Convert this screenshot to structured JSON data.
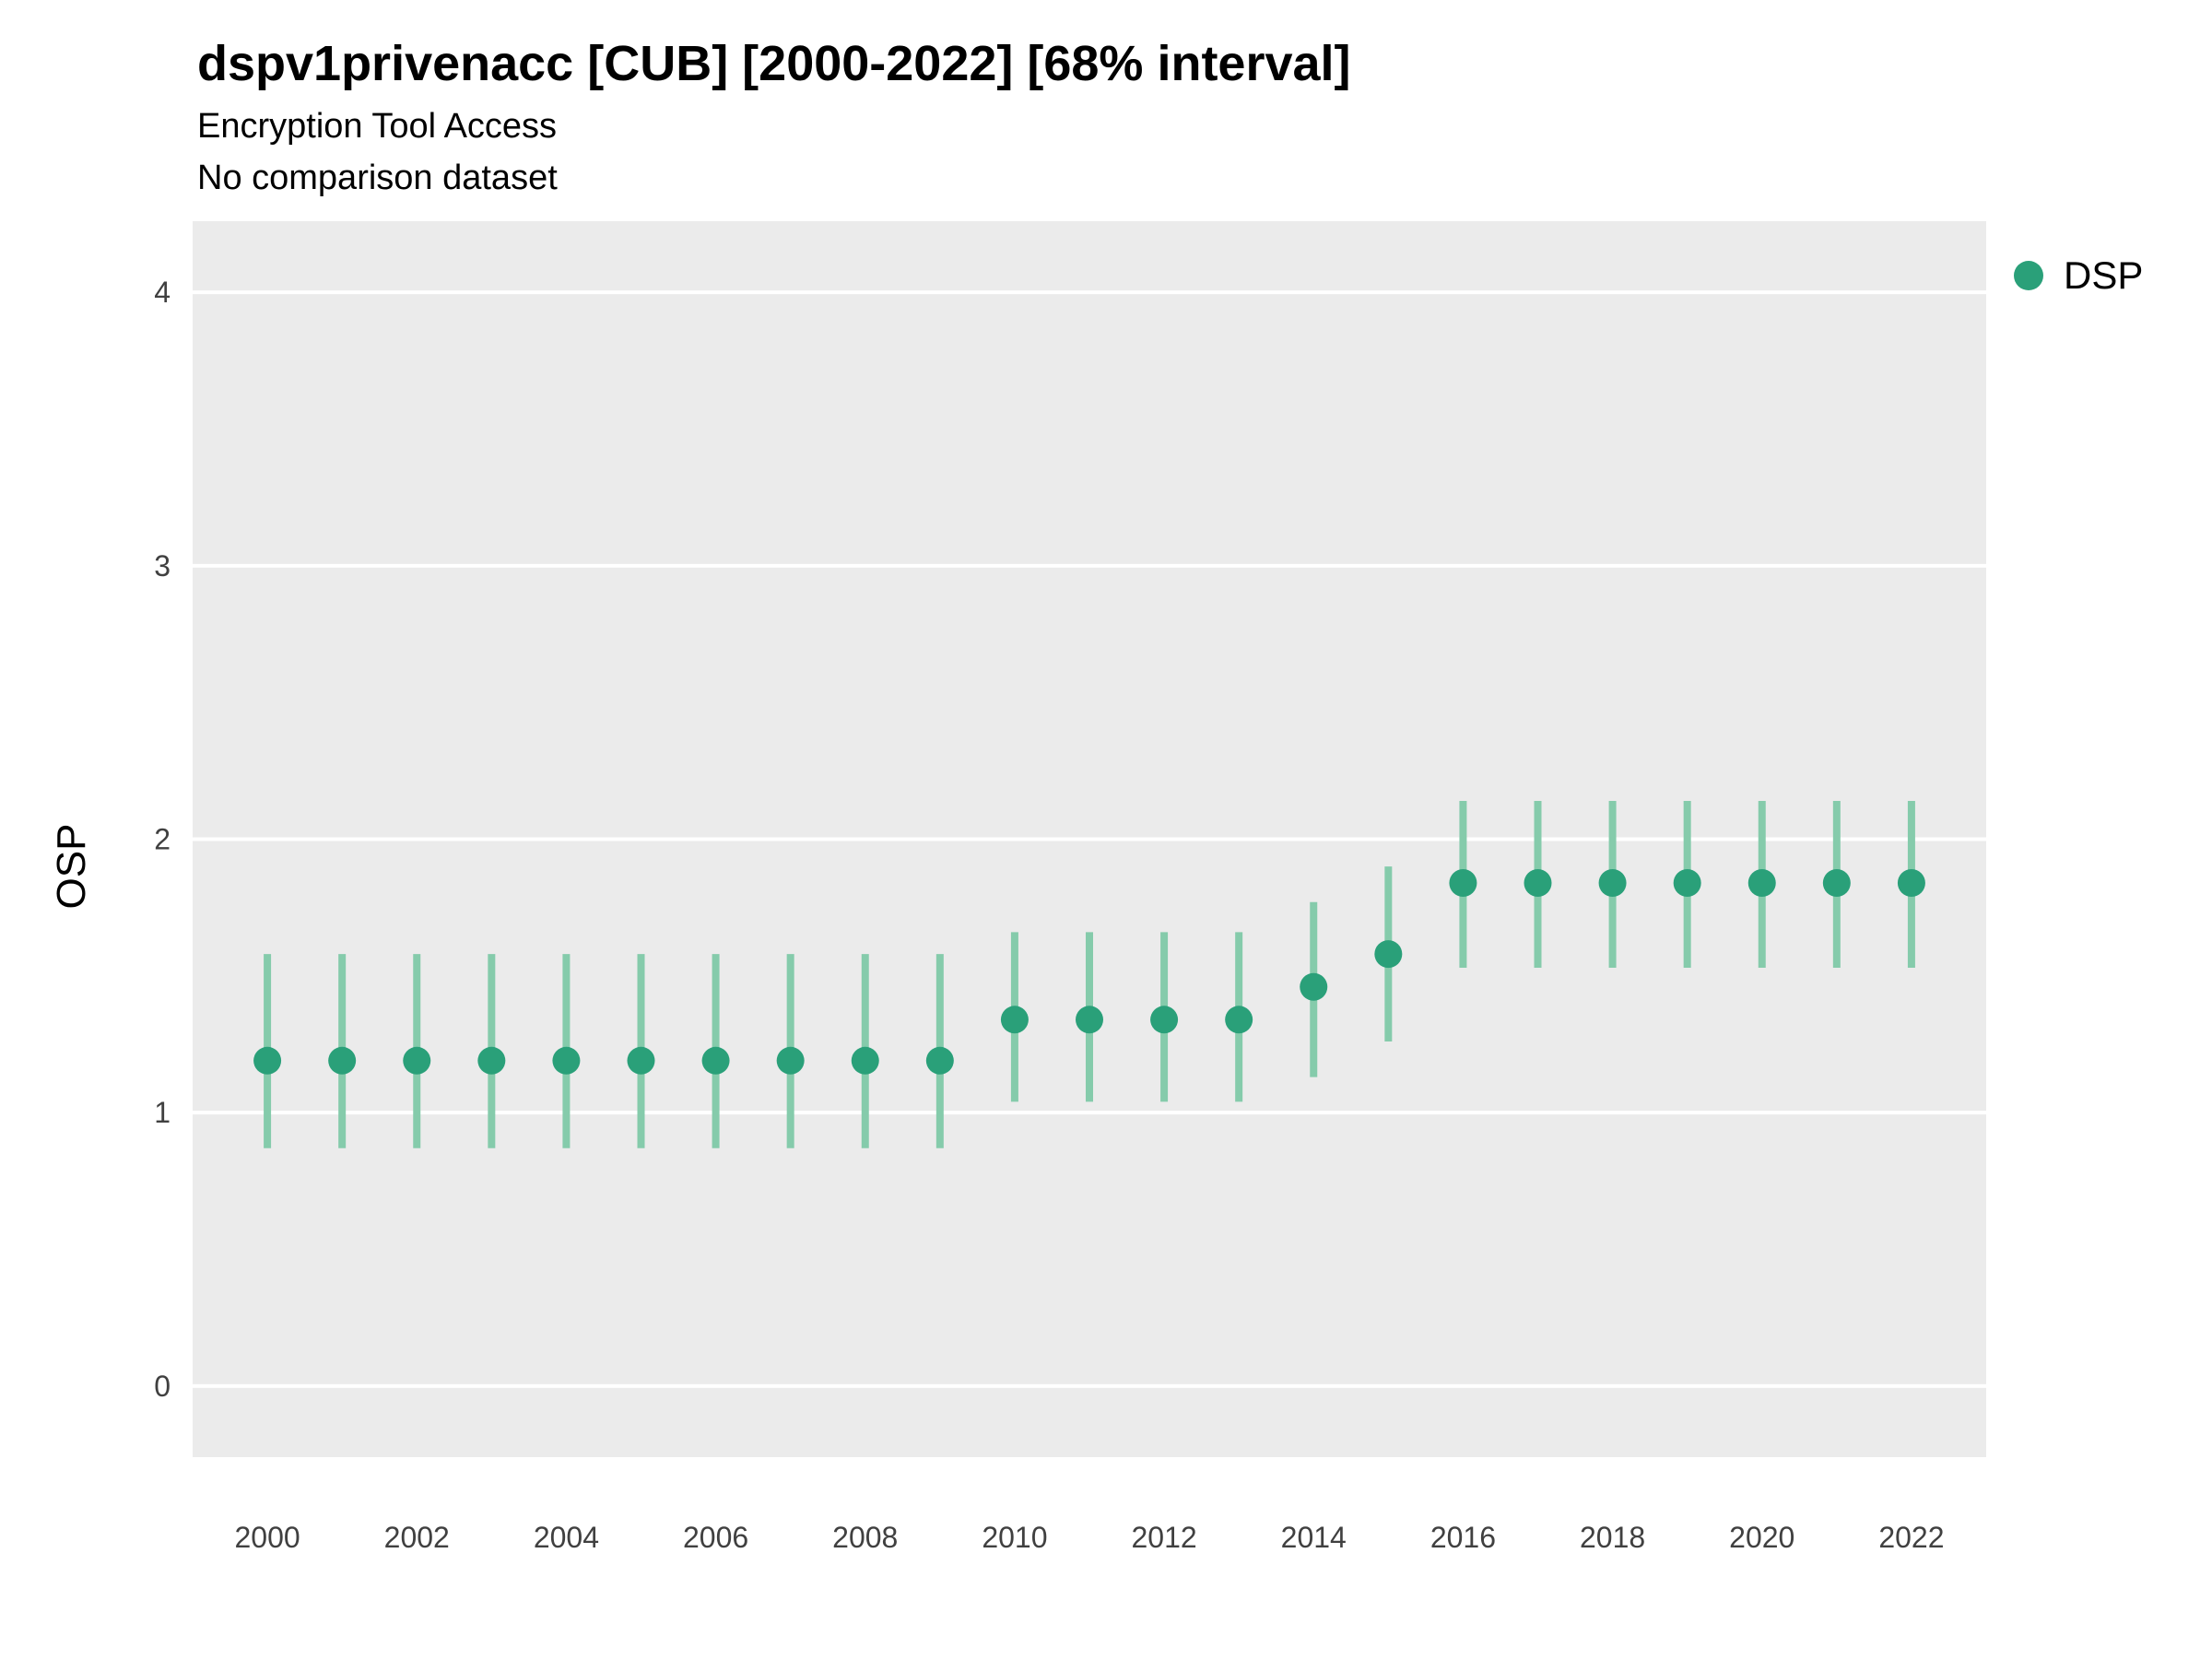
{
  "header": {
    "title": "dspv1privenacc [CUB] [2000-2022] [68% interval]",
    "subtitle": "Encryption Tool Access",
    "subtitle2": "No comparison dataset"
  },
  "legend": {
    "label": "DSP"
  },
  "colors": {
    "point": "#2aa079",
    "interval": "#85cbab",
    "panel_bg": "#ebebeb",
    "grid": "#ffffff",
    "tick_text": "#404040"
  },
  "chart_data": {
    "type": "pointrange",
    "title": "dspv1privenacc [CUB] [2000-2022] [68% interval]",
    "subtitle": "Encryption Tool Access",
    "note": "No comparison dataset",
    "ylabel": "OSP",
    "xlabel": "",
    "legend_position": "right",
    "grid": "major-horizontal",
    "series_name": "DSP",
    "x": [
      2000,
      2001,
      2002,
      2003,
      2004,
      2005,
      2006,
      2007,
      2008,
      2009,
      2010,
      2011,
      2012,
      2013,
      2014,
      2015,
      2016,
      2017,
      2018,
      2019,
      2020,
      2021,
      2022
    ],
    "y": [
      1.19,
      1.19,
      1.19,
      1.19,
      1.19,
      1.19,
      1.19,
      1.19,
      1.19,
      1.19,
      1.34,
      1.34,
      1.34,
      1.34,
      1.46,
      1.58,
      1.84,
      1.84,
      1.84,
      1.84,
      1.84,
      1.84,
      1.84
    ],
    "ymin": [
      0.87,
      0.87,
      0.87,
      0.87,
      0.87,
      0.87,
      0.87,
      0.87,
      0.87,
      0.87,
      1.04,
      1.04,
      1.04,
      1.04,
      1.13,
      1.26,
      1.53,
      1.53,
      1.53,
      1.53,
      1.53,
      1.53,
      1.53
    ],
    "ymax": [
      1.58,
      1.58,
      1.58,
      1.58,
      1.58,
      1.58,
      1.58,
      1.58,
      1.58,
      1.58,
      1.66,
      1.66,
      1.66,
      1.66,
      1.77,
      1.9,
      2.14,
      2.14,
      2.14,
      2.14,
      2.14,
      2.14,
      2.14
    ],
    "yticks": [
      0,
      1,
      2,
      3,
      4
    ],
    "xticks": [
      2000,
      2002,
      2004,
      2006,
      2008,
      2010,
      2012,
      2014,
      2016,
      2018,
      2020,
      2022
    ],
    "xlim": [
      1999,
      2023
    ],
    "ylim": [
      -0.26,
      4.26
    ]
  }
}
